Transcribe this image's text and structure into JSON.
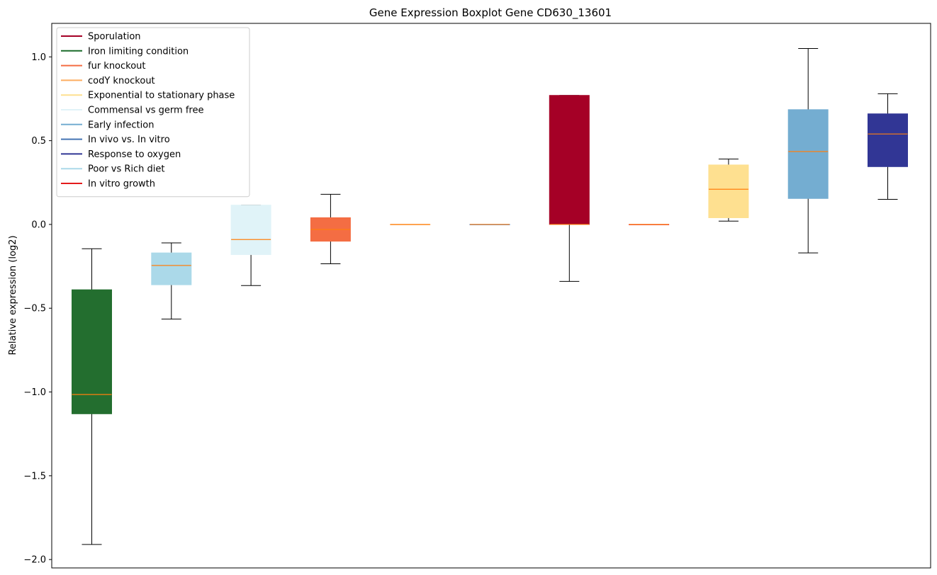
{
  "chart_data": {
    "type": "boxplot",
    "title": "Gene Expression Boxplot Gene CD630_13601",
    "xlabel": "",
    "ylabel": "Relative expression (log2)",
    "ylim": [
      -2.05,
      1.2
    ],
    "yticks": [
      1.0,
      0.5,
      0.0,
      -0.5,
      -1.0,
      -1.5,
      -2.0
    ],
    "ytick_labels": [
      "1.0",
      "0.5",
      "0.0",
      "−0.5",
      "−1.0",
      "−1.5",
      "−2.0"
    ],
    "legend_position": "top-left",
    "median_color": "#ff7f0e",
    "legend": [
      {
        "label": "Sporulation",
        "color": "#a50026"
      },
      {
        "label": "Iron limiting condition",
        "color": "#1b6b2a"
      },
      {
        "label": "fur knockout",
        "color": "#f46d43"
      },
      {
        "label": "codY knockout",
        "color": "#fdae61"
      },
      {
        "label": "Exponential to stationary phase",
        "color": "#fee090"
      },
      {
        "label": "Commensal vs germ free",
        "color": "#e0f3f8"
      },
      {
        "label": "Early infection",
        "color": "#74add1"
      },
      {
        "label": "In vivo vs. In vitro",
        "color": "#4575b4"
      },
      {
        "label": "Response to oxygen",
        "color": "#313695"
      },
      {
        "label": "Poor vs Rich diet",
        "color": "#abd9e9"
      },
      {
        "label": "In vitro growth",
        "color": "#e41a1c"
      }
    ],
    "boxes": [
      {
        "group": "Iron limiting condition",
        "color": "#236e2f",
        "whisker_low": -1.91,
        "q1": -1.13,
        "median": -1.015,
        "q3": -0.39,
        "whisker_high": -0.145
      },
      {
        "group": "Poor vs Rich diet",
        "color": "#abd9e9",
        "whisker_low": -0.565,
        "q1": -0.36,
        "median": -0.245,
        "q3": -0.17,
        "whisker_high": -0.11
      },
      {
        "group": "Commensal vs germ free",
        "color": "#e0f3f8",
        "whisker_low": -0.365,
        "q1": -0.18,
        "median": -0.09,
        "q3": 0.115,
        "whisker_high": 0.115
      },
      {
        "group": "fur knockout",
        "color": "#f46d43",
        "whisker_low": -0.235,
        "q1": -0.1,
        "median": -0.03,
        "q3": 0.04,
        "whisker_high": 0.18
      },
      {
        "group": "codY knockout",
        "color": "#fdae61",
        "whisker_low": 0.0,
        "q1": 0.0,
        "median": 0.0,
        "q3": 0.0,
        "whisker_high": 0.0
      },
      {
        "group": "In vivo vs. In vitro",
        "color": "#4575b4",
        "whisker_low": 0.0,
        "q1": 0.0,
        "median": 0.0,
        "q3": 0.0,
        "whisker_high": 0.0
      },
      {
        "group": "Sporulation",
        "color": "#a50026",
        "whisker_low": -0.34,
        "q1": 0.0,
        "median": 0.0,
        "q3": 0.77,
        "whisker_high": 0.77
      },
      {
        "group": "In vitro growth",
        "color": "#e41a1c",
        "whisker_low": 0.0,
        "q1": 0.0,
        "median": 0.0,
        "q3": 0.0,
        "whisker_high": 0.0
      },
      {
        "group": "Exponential to stationary phase",
        "color": "#fee090",
        "whisker_low": 0.02,
        "q1": 0.04,
        "median": 0.21,
        "q3": 0.355,
        "whisker_high": 0.39
      },
      {
        "group": "Early infection",
        "color": "#74add1",
        "whisker_low": -0.17,
        "q1": 0.155,
        "median": 0.435,
        "q3": 0.685,
        "whisker_high": 1.05
      },
      {
        "group": "Response to oxygen",
        "color": "#313695",
        "whisker_low": 0.15,
        "q1": 0.345,
        "median": 0.54,
        "q3": 0.66,
        "whisker_high": 0.78
      }
    ]
  }
}
